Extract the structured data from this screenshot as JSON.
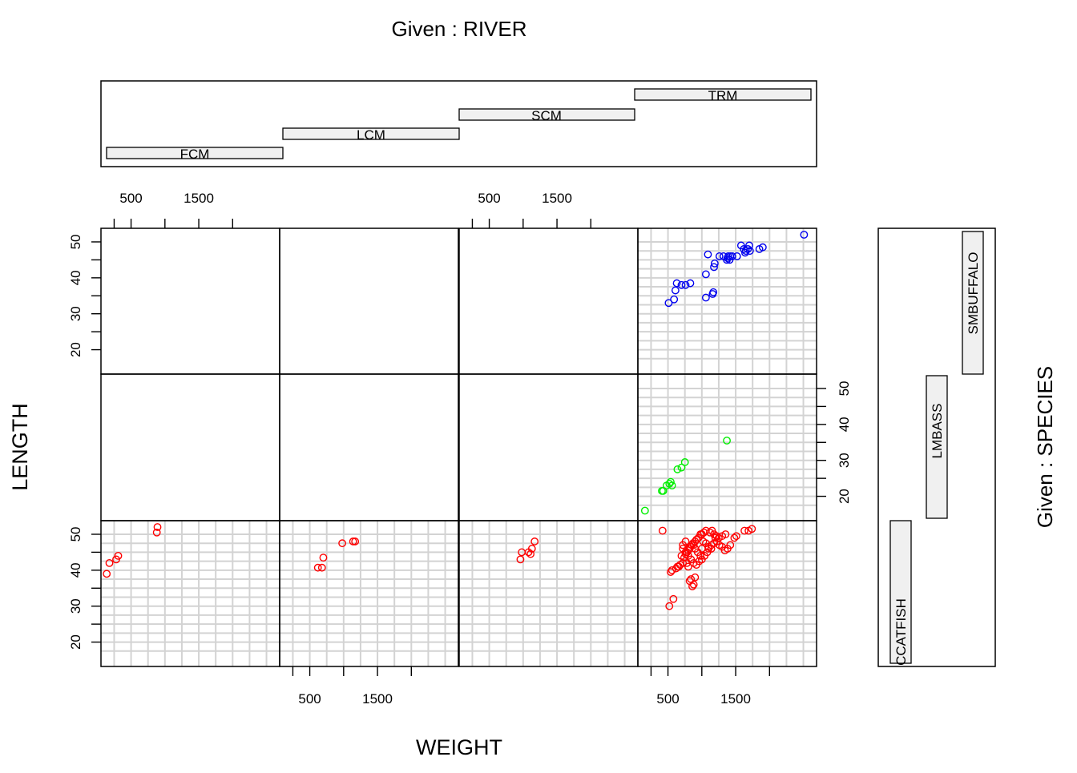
{
  "chart_data": {
    "type": "scatter",
    "title": "Given : RIVER",
    "xlabel": "WEIGHT",
    "ylabel": "LENGTH",
    "given_right_label": "Given : SPECIES",
    "xlim": [
      150,
      2600
    ],
    "ylim": [
      15,
      52
    ],
    "x_ticks": [
      250,
      500,
      1000,
      1500,
      2000
    ],
    "x_tick_labels": [
      "500",
      "1500"
    ],
    "y_ticks": [
      20,
      25,
      30,
      35,
      40,
      45,
      50
    ],
    "y_tick_labels": [
      "20",
      "30",
      "40",
      "50"
    ],
    "grid": true,
    "rivers": [
      "FCM",
      "LCM",
      "SCM",
      "TRM"
    ],
    "species": [
      "CCATFISH",
      "LMBASS",
      "SMBUFFALO"
    ],
    "colors": {
      "CCATFISH": "#ff0000",
      "LMBASS": "#00ee00",
      "SMBUFFALO": "#0000ee",
      "bar_fill": "#f0f0f0",
      "grid": "#d3d3d3"
    },
    "panels": [
      {
        "river": "FCM",
        "species": "CCATFISH",
        "points": [
          [
            140,
            39
          ],
          [
            180,
            42
          ],
          [
            280,
            43
          ],
          [
            310,
            44
          ],
          [
            880,
            50.5
          ],
          [
            890,
            52
          ]
        ]
      },
      {
        "river": "LCM",
        "species": "CCATFISH",
        "points": [
          [
            620,
            40.7
          ],
          [
            680,
            40.7
          ],
          [
            700,
            43.5
          ],
          [
            980,
            47.5
          ],
          [
            1140,
            48
          ],
          [
            1170,
            48
          ]
        ]
      },
      {
        "river": "SCM",
        "species": "CCATFISH",
        "points": [
          [
            960,
            43
          ],
          [
            980,
            45
          ],
          [
            1080,
            45
          ],
          [
            1110,
            44.5
          ],
          [
            1130,
            46
          ],
          [
            1170,
            48
          ]
        ]
      },
      {
        "river": "TRM",
        "species": "CCATFISH",
        "points": [
          [
            420,
            51
          ],
          [
            520,
            30
          ],
          [
            580,
            32
          ],
          [
            540,
            39.5
          ],
          [
            560,
            40
          ],
          [
            620,
            40.5
          ],
          [
            640,
            41
          ],
          [
            660,
            41
          ],
          [
            680,
            41.5
          ],
          [
            720,
            42
          ],
          [
            740,
            43.5
          ],
          [
            760,
            44.5
          ],
          [
            780,
            45
          ],
          [
            800,
            45.5
          ],
          [
            820,
            46
          ],
          [
            830,
            46.5
          ],
          [
            850,
            47
          ],
          [
            870,
            47.5
          ],
          [
            900,
            48
          ],
          [
            920,
            48.5
          ],
          [
            950,
            49
          ],
          [
            980,
            50
          ],
          [
            1000,
            50
          ],
          [
            1030,
            50.5
          ],
          [
            1060,
            51
          ],
          [
            1120,
            50.5
          ],
          [
            1150,
            51
          ],
          [
            1180,
            50
          ],
          [
            1220,
            49.5
          ],
          [
            1250,
            49
          ],
          [
            1300,
            49.5
          ],
          [
            1350,
            50
          ],
          [
            1480,
            49
          ],
          [
            1510,
            49.5
          ],
          [
            1630,
            51
          ],
          [
            1690,
            51
          ],
          [
            1740,
            51.5
          ],
          [
            720,
            46
          ],
          [
            760,
            45
          ],
          [
            800,
            44
          ],
          [
            840,
            43
          ],
          [
            880,
            42
          ],
          [
            920,
            41.5
          ],
          [
            960,
            42.5
          ],
          [
            1000,
            43
          ],
          [
            1040,
            44
          ],
          [
            1080,
            45
          ],
          [
            1100,
            46
          ],
          [
            1140,
            47
          ],
          [
            1180,
            47.5
          ],
          [
            1220,
            48
          ],
          [
            1260,
            47
          ],
          [
            1300,
            46.5
          ],
          [
            1340,
            45.5
          ],
          [
            1380,
            46
          ],
          [
            1420,
            47
          ],
          [
            780,
            42
          ],
          [
            800,
            41
          ],
          [
            820,
            37
          ],
          [
            840,
            37.5
          ],
          [
            860,
            35.5
          ],
          [
            880,
            36
          ],
          [
            900,
            38
          ],
          [
            700,
            44
          ],
          [
            720,
            47
          ],
          [
            760,
            48
          ],
          [
            880,
            47
          ],
          [
            900,
            46
          ],
          [
            940,
            45
          ],
          [
            980,
            44
          ],
          [
            1000,
            46
          ],
          [
            1020,
            48
          ],
          [
            1060,
            47.5
          ],
          [
            1100,
            46.5
          ],
          [
            1140,
            46
          ],
          [
            1200,
            49
          ]
        ]
      },
      {
        "river": "TRM",
        "species": "LMBASS",
        "points": [
          [
            160,
            16
          ],
          [
            410,
            21.5
          ],
          [
            430,
            21.5
          ],
          [
            480,
            23
          ],
          [
            520,
            23.5
          ],
          [
            540,
            24
          ],
          [
            560,
            23
          ],
          [
            640,
            27.5
          ],
          [
            700,
            28
          ],
          [
            750,
            29.5
          ],
          [
            1370,
            35.5
          ]
        ]
      },
      {
        "river": "TRM",
        "species": "SMBUFFALO",
        "points": [
          [
            510,
            33
          ],
          [
            590,
            34
          ],
          [
            610,
            36.5
          ],
          [
            630,
            38.5
          ],
          [
            700,
            38
          ],
          [
            760,
            38
          ],
          [
            830,
            38.5
          ],
          [
            1060,
            34.5
          ],
          [
            1060,
            41
          ],
          [
            1090,
            46.5
          ],
          [
            1160,
            35.5
          ],
          [
            1170,
            36
          ],
          [
            1180,
            43
          ],
          [
            1190,
            44
          ],
          [
            1260,
            46
          ],
          [
            1320,
            46
          ],
          [
            1370,
            45
          ],
          [
            1380,
            45.5
          ],
          [
            1390,
            46
          ],
          [
            1410,
            45
          ],
          [
            1420,
            46
          ],
          [
            1450,
            46
          ],
          [
            1520,
            46
          ],
          [
            1580,
            49
          ],
          [
            1620,
            48
          ],
          [
            1640,
            47
          ],
          [
            1650,
            47.5
          ],
          [
            1680,
            48
          ],
          [
            1700,
            49
          ],
          [
            1710,
            47.5
          ],
          [
            1850,
            48
          ],
          [
            1900,
            48.5
          ],
          [
            2510,
            52
          ]
        ]
      }
    ]
  }
}
